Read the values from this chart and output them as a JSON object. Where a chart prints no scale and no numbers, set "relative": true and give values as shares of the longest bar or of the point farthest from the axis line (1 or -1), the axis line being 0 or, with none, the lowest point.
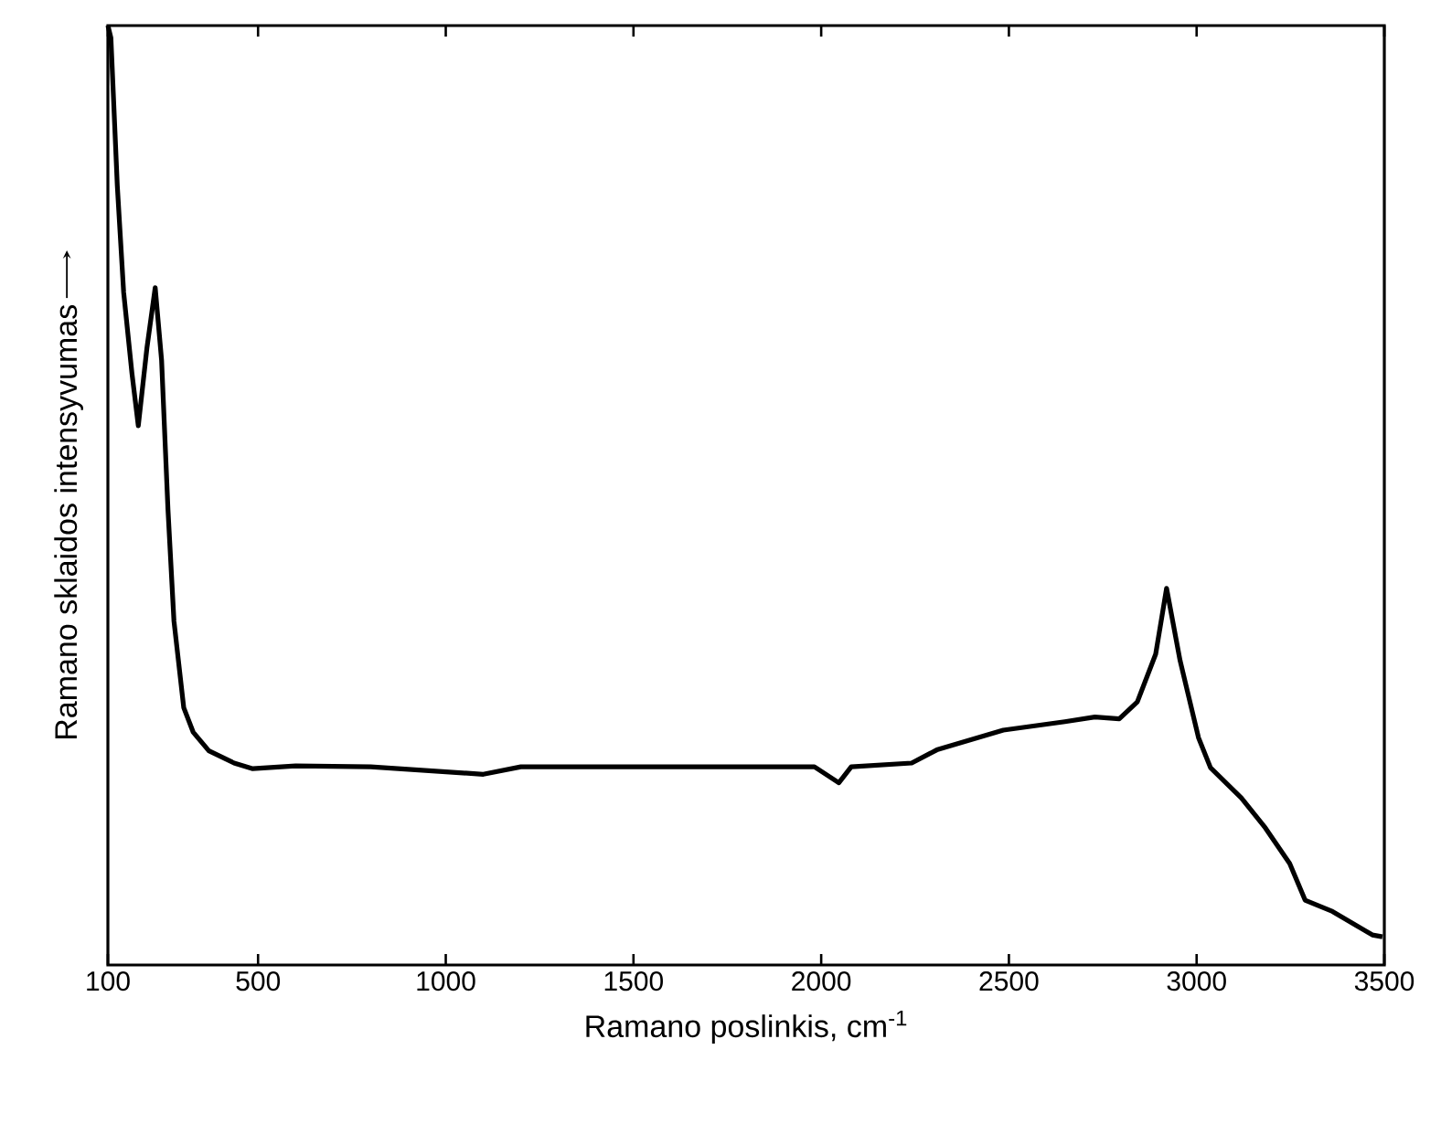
{
  "chart_data": {
    "type": "line",
    "xlabel": "Ramano poslinkis, cm$^{-1}$",
    "ylabel": "Ramano sklaidos intensyvumas",
    "color": "#000000",
    "relative": true,
    "xlim": [
      100,
      3500
    ],
    "xticks": [
      100,
      500,
      1000,
      1500,
      2000,
      2500,
      3000,
      3500
    ],
    "x": [
      100,
      108,
      125,
      142,
      164,
      181,
      204,
      226,
      243,
      260,
      276,
      302,
      327,
      369,
      436,
      486,
      600,
      800,
      1100,
      1200,
      1500,
      1755,
      1982,
      2047,
      2080,
      2241,
      2308,
      2485,
      2649,
      2729,
      2794,
      2842,
      2891,
      2920,
      2956,
      3005,
      3037,
      3119,
      3183,
      3248,
      3289,
      3362,
      3468,
      3495
    ],
    "values": [
      1.0,
      0.987,
      0.83,
      0.716,
      0.63,
      0.574,
      0.657,
      0.721,
      0.644,
      0.485,
      0.366,
      0.274,
      0.248,
      0.228,
      0.215,
      0.209,
      0.212,
      0.211,
      0.203,
      0.211,
      0.211,
      0.211,
      0.211,
      0.194,
      0.211,
      0.215,
      0.229,
      0.25,
      0.259,
      0.264,
      0.262,
      0.28,
      0.331,
      0.401,
      0.324,
      0.242,
      0.21,
      0.178,
      0.146,
      0.108,
      0.069,
      0.057,
      0.032,
      0.03
    ]
  }
}
